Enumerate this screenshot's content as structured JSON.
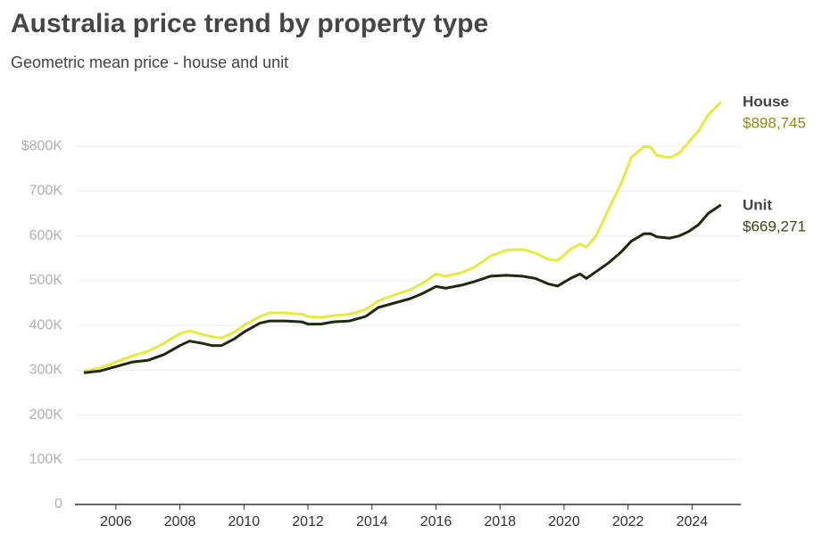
{
  "chart_data": {
    "type": "line",
    "title": "Australia price trend by property type",
    "subtitle": "Geometric mean price - house and unit",
    "x": [
      2005.0,
      2005.5,
      2006.0,
      2006.5,
      2007.0,
      2007.5,
      2008.0,
      2008.3,
      2008.7,
      2009.0,
      2009.3,
      2009.7,
      2010.0,
      2010.5,
      2010.8,
      2011.3,
      2011.8,
      2012.0,
      2012.4,
      2012.8,
      2013.3,
      2013.8,
      2014.2,
      2014.7,
      2015.2,
      2015.6,
      2016.0,
      2016.3,
      2016.8,
      2017.2,
      2017.7,
      2018.2,
      2018.7,
      2019.1,
      2019.5,
      2019.8,
      2020.2,
      2020.5,
      2020.7,
      2021.0,
      2021.4,
      2021.8,
      2022.1,
      2022.5,
      2022.7,
      2022.9,
      2023.3,
      2023.6,
      2023.9,
      2024.2,
      2024.5,
      2024.9
    ],
    "series": [
      {
        "name": "House",
        "color": "#e9e83c",
        "label_color": "#8c8c1c",
        "end_label": "$898,745",
        "values": [
          298000,
          305000,
          318000,
          332000,
          342000,
          360000,
          382000,
          388000,
          380000,
          375000,
          372000,
          385000,
          400000,
          420000,
          428000,
          428000,
          425000,
          420000,
          418000,
          422000,
          425000,
          435000,
          455000,
          468000,
          480000,
          495000,
          515000,
          510000,
          518000,
          530000,
          555000,
          568000,
          570000,
          562000,
          548000,
          545000,
          570000,
          582000,
          575000,
          600000,
          660000,
          720000,
          775000,
          800000,
          798000,
          780000,
          775000,
          785000,
          810000,
          835000,
          870000,
          898745
        ]
      },
      {
        "name": "Unit",
        "color": "#1e2a0e",
        "label_color": "#34461a",
        "end_label": "$669,271",
        "values": [
          294000,
          298000,
          308000,
          318000,
          322000,
          335000,
          355000,
          365000,
          360000,
          355000,
          355000,
          370000,
          385000,
          405000,
          410000,
          410000,
          408000,
          403000,
          403000,
          408000,
          410000,
          420000,
          440000,
          450000,
          460000,
          472000,
          487000,
          483000,
          490000,
          498000,
          510000,
          512000,
          510000,
          505000,
          493000,
          488000,
          505000,
          515000,
          505000,
          520000,
          540000,
          565000,
          588000,
          605000,
          605000,
          598000,
          595000,
          600000,
          610000,
          625000,
          650000,
          669271
        ]
      }
    ],
    "xlim": [
      2005,
      2025.3
    ],
    "xticks": [
      2006,
      2008,
      2010,
      2012,
      2014,
      2016,
      2018,
      2020,
      2022,
      2024
    ],
    "ylim": [
      0,
      900000
    ],
    "yticks": [
      0,
      {
        "value": 100000,
        "label": "100K"
      },
      {
        "value": 200000,
        "label": "200K"
      },
      {
        "value": 300000,
        "label": "300K"
      },
      {
        "value": 400000,
        "label": "400K"
      },
      {
        "value": 500000,
        "label": "500K"
      },
      {
        "value": 600000,
        "label": "600K"
      },
      {
        "value": 700000,
        "label": "700K"
      },
      {
        "value": 800000,
        "label": "$800K"
      }
    ],
    "grid": true
  }
}
